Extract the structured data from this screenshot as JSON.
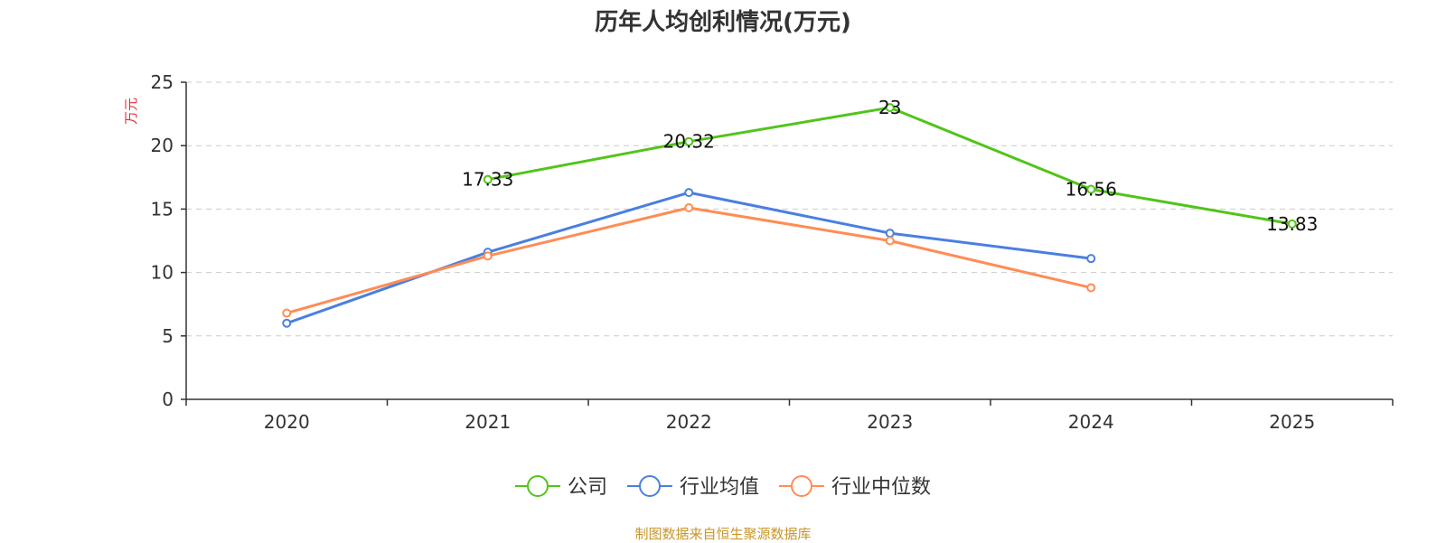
{
  "title": "历年人均创利情况(万元)",
  "footer": "制图数据来自恒生聚源数据库",
  "chart_data": {
    "type": "line",
    "title": "历年人均创利情况(万元)",
    "ylabel": "万元",
    "xlabel": "",
    "categories": [
      "2020",
      "2021",
      "2022",
      "2023",
      "2024",
      "2025"
    ],
    "ylim": [
      0,
      25
    ],
    "yticks": [
      0,
      5,
      10,
      15,
      20,
      25
    ],
    "grid": true,
    "legend_position": "bottom-center",
    "series": [
      {
        "name": "公司",
        "color": "#52c41a",
        "values": [
          null,
          17.33,
          20.32,
          23,
          16.56,
          13.83
        ],
        "labels": [
          null,
          "17.33",
          "20.32",
          "23",
          "16.56",
          "13.83"
        ]
      },
      {
        "name": "行业均值",
        "color": "#4a7fe0",
        "values": [
          6.0,
          11.6,
          16.3,
          13.1,
          11.1,
          null
        ]
      },
      {
        "name": "行业中位数",
        "color": "#ff8c55",
        "values": [
          6.8,
          11.3,
          15.1,
          12.5,
          8.8,
          null
        ]
      }
    ]
  }
}
